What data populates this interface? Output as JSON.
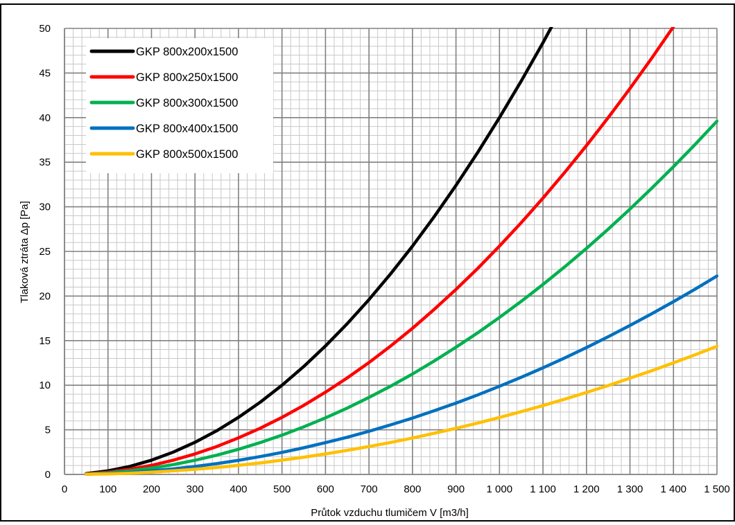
{
  "chart_data": {
    "type": "line",
    "title": "",
    "xlabel": "Průtok vzduchu tlumičem V [m3/h]",
    "ylabel": "Tlaková ztráta Δp [Pa]",
    "xlim": [
      0,
      1500
    ],
    "ylim": [
      0,
      50
    ],
    "x_ticks": [
      0,
      100,
      200,
      300,
      400,
      500,
      600,
      700,
      800,
      900,
      1000,
      1100,
      1200,
      1300,
      1400,
      1500
    ],
    "x_tick_labels": [
      "0",
      "100",
      "200",
      "300",
      "400",
      "500",
      "600",
      "700",
      "800",
      "900",
      "1 000",
      "1 100",
      "1 200",
      "1 300",
      "1 400",
      "1 500"
    ],
    "y_ticks": [
      0,
      5,
      10,
      15,
      20,
      25,
      30,
      35,
      40,
      45,
      50
    ],
    "y_tick_labels": [
      "0",
      "5",
      "10",
      "15",
      "20",
      "25",
      "30",
      "35",
      "40",
      "45",
      "50"
    ],
    "grid": true,
    "legend_position": "top-left",
    "series": [
      {
        "name": "GKP 800x200x1500",
        "color": "#000000",
        "x": [
          50,
          100,
          150,
          200,
          250,
          300,
          350,
          400,
          450,
          500,
          550,
          600,
          650,
          700,
          750,
          800,
          850,
          900,
          950,
          1000,
          1050,
          1100,
          1120
        ],
        "y": [
          0.1,
          0.4,
          0.9,
          1.6,
          2.5,
          3.6,
          4.9,
          6.4,
          8.1,
          10.0,
          12.1,
          14.4,
          16.9,
          19.6,
          22.5,
          25.6,
          28.9,
          32.4,
          36.1,
          40.0,
          44.1,
          48.4,
          50.2
        ]
      },
      {
        "name": "GKP 800x250x1500",
        "color": "#ff0000",
        "x": [
          50,
          100,
          150,
          200,
          250,
          300,
          350,
          400,
          450,
          500,
          550,
          600,
          650,
          700,
          750,
          800,
          850,
          900,
          950,
          1000,
          1050,
          1100,
          1150,
          1200,
          1250,
          1300,
          1350,
          1400
        ],
        "y": [
          0.06,
          0.26,
          0.58,
          1.02,
          1.6,
          2.3,
          3.13,
          4.1,
          5.18,
          6.4,
          7.74,
          9.22,
          10.82,
          12.54,
          14.4,
          16.38,
          18.5,
          20.74,
          23.1,
          25.6,
          28.22,
          30.98,
          33.86,
          36.86,
          40.0,
          43.26,
          46.66,
          50.2
        ]
      },
      {
        "name": "GKP 800x300x1500",
        "color": "#00b050",
        "x": [
          50,
          100,
          150,
          200,
          250,
          300,
          350,
          400,
          450,
          500,
          550,
          600,
          650,
          700,
          750,
          800,
          850,
          900,
          950,
          1000,
          1050,
          1100,
          1150,
          1200,
          1250,
          1300,
          1350,
          1400,
          1450,
          1500
        ],
        "y": [
          0.04,
          0.18,
          0.4,
          0.71,
          1.1,
          1.58,
          2.16,
          2.82,
          3.57,
          4.4,
          5.33,
          6.34,
          7.44,
          8.63,
          9.9,
          11.26,
          12.72,
          14.26,
          15.88,
          17.6,
          19.4,
          21.3,
          23.27,
          25.34,
          27.5,
          29.74,
          32.08,
          34.5,
          37.0,
          39.6
        ]
      },
      {
        "name": "GKP 800x400x1500",
        "color": "#0070c0",
        "x": [
          50,
          100,
          150,
          200,
          250,
          300,
          350,
          400,
          450,
          500,
          550,
          600,
          650,
          700,
          750,
          800,
          850,
          900,
          950,
          1000,
          1050,
          1100,
          1150,
          1200,
          1250,
          1300,
          1350,
          1400,
          1450,
          1500
        ],
        "y": [
          0.02,
          0.1,
          0.22,
          0.4,
          0.62,
          0.89,
          1.21,
          1.58,
          2.0,
          2.47,
          2.99,
          3.56,
          4.17,
          4.84,
          5.56,
          6.32,
          7.14,
          8.0,
          8.91,
          9.88,
          10.89,
          11.95,
          13.06,
          14.22,
          15.44,
          16.7,
          18.01,
          19.37,
          20.78,
          22.24
        ]
      },
      {
        "name": "GKP 800x500x1500",
        "color": "#ffc000",
        "x": [
          50,
          100,
          150,
          200,
          250,
          300,
          350,
          400,
          450,
          500,
          550,
          600,
          650,
          700,
          750,
          800,
          850,
          900,
          950,
          1000,
          1050,
          1100,
          1150,
          1200,
          1250,
          1300,
          1350,
          1400,
          1450,
          1500
        ],
        "y": [
          0.02,
          0.06,
          0.14,
          0.25,
          0.4,
          0.58,
          0.78,
          1.02,
          1.29,
          1.6,
          1.93,
          2.3,
          2.7,
          3.13,
          3.59,
          4.08,
          4.61,
          5.17,
          5.76,
          6.38,
          7.04,
          7.72,
          8.44,
          9.19,
          9.97,
          10.79,
          11.63,
          12.51,
          13.42,
          14.36
        ]
      }
    ]
  }
}
